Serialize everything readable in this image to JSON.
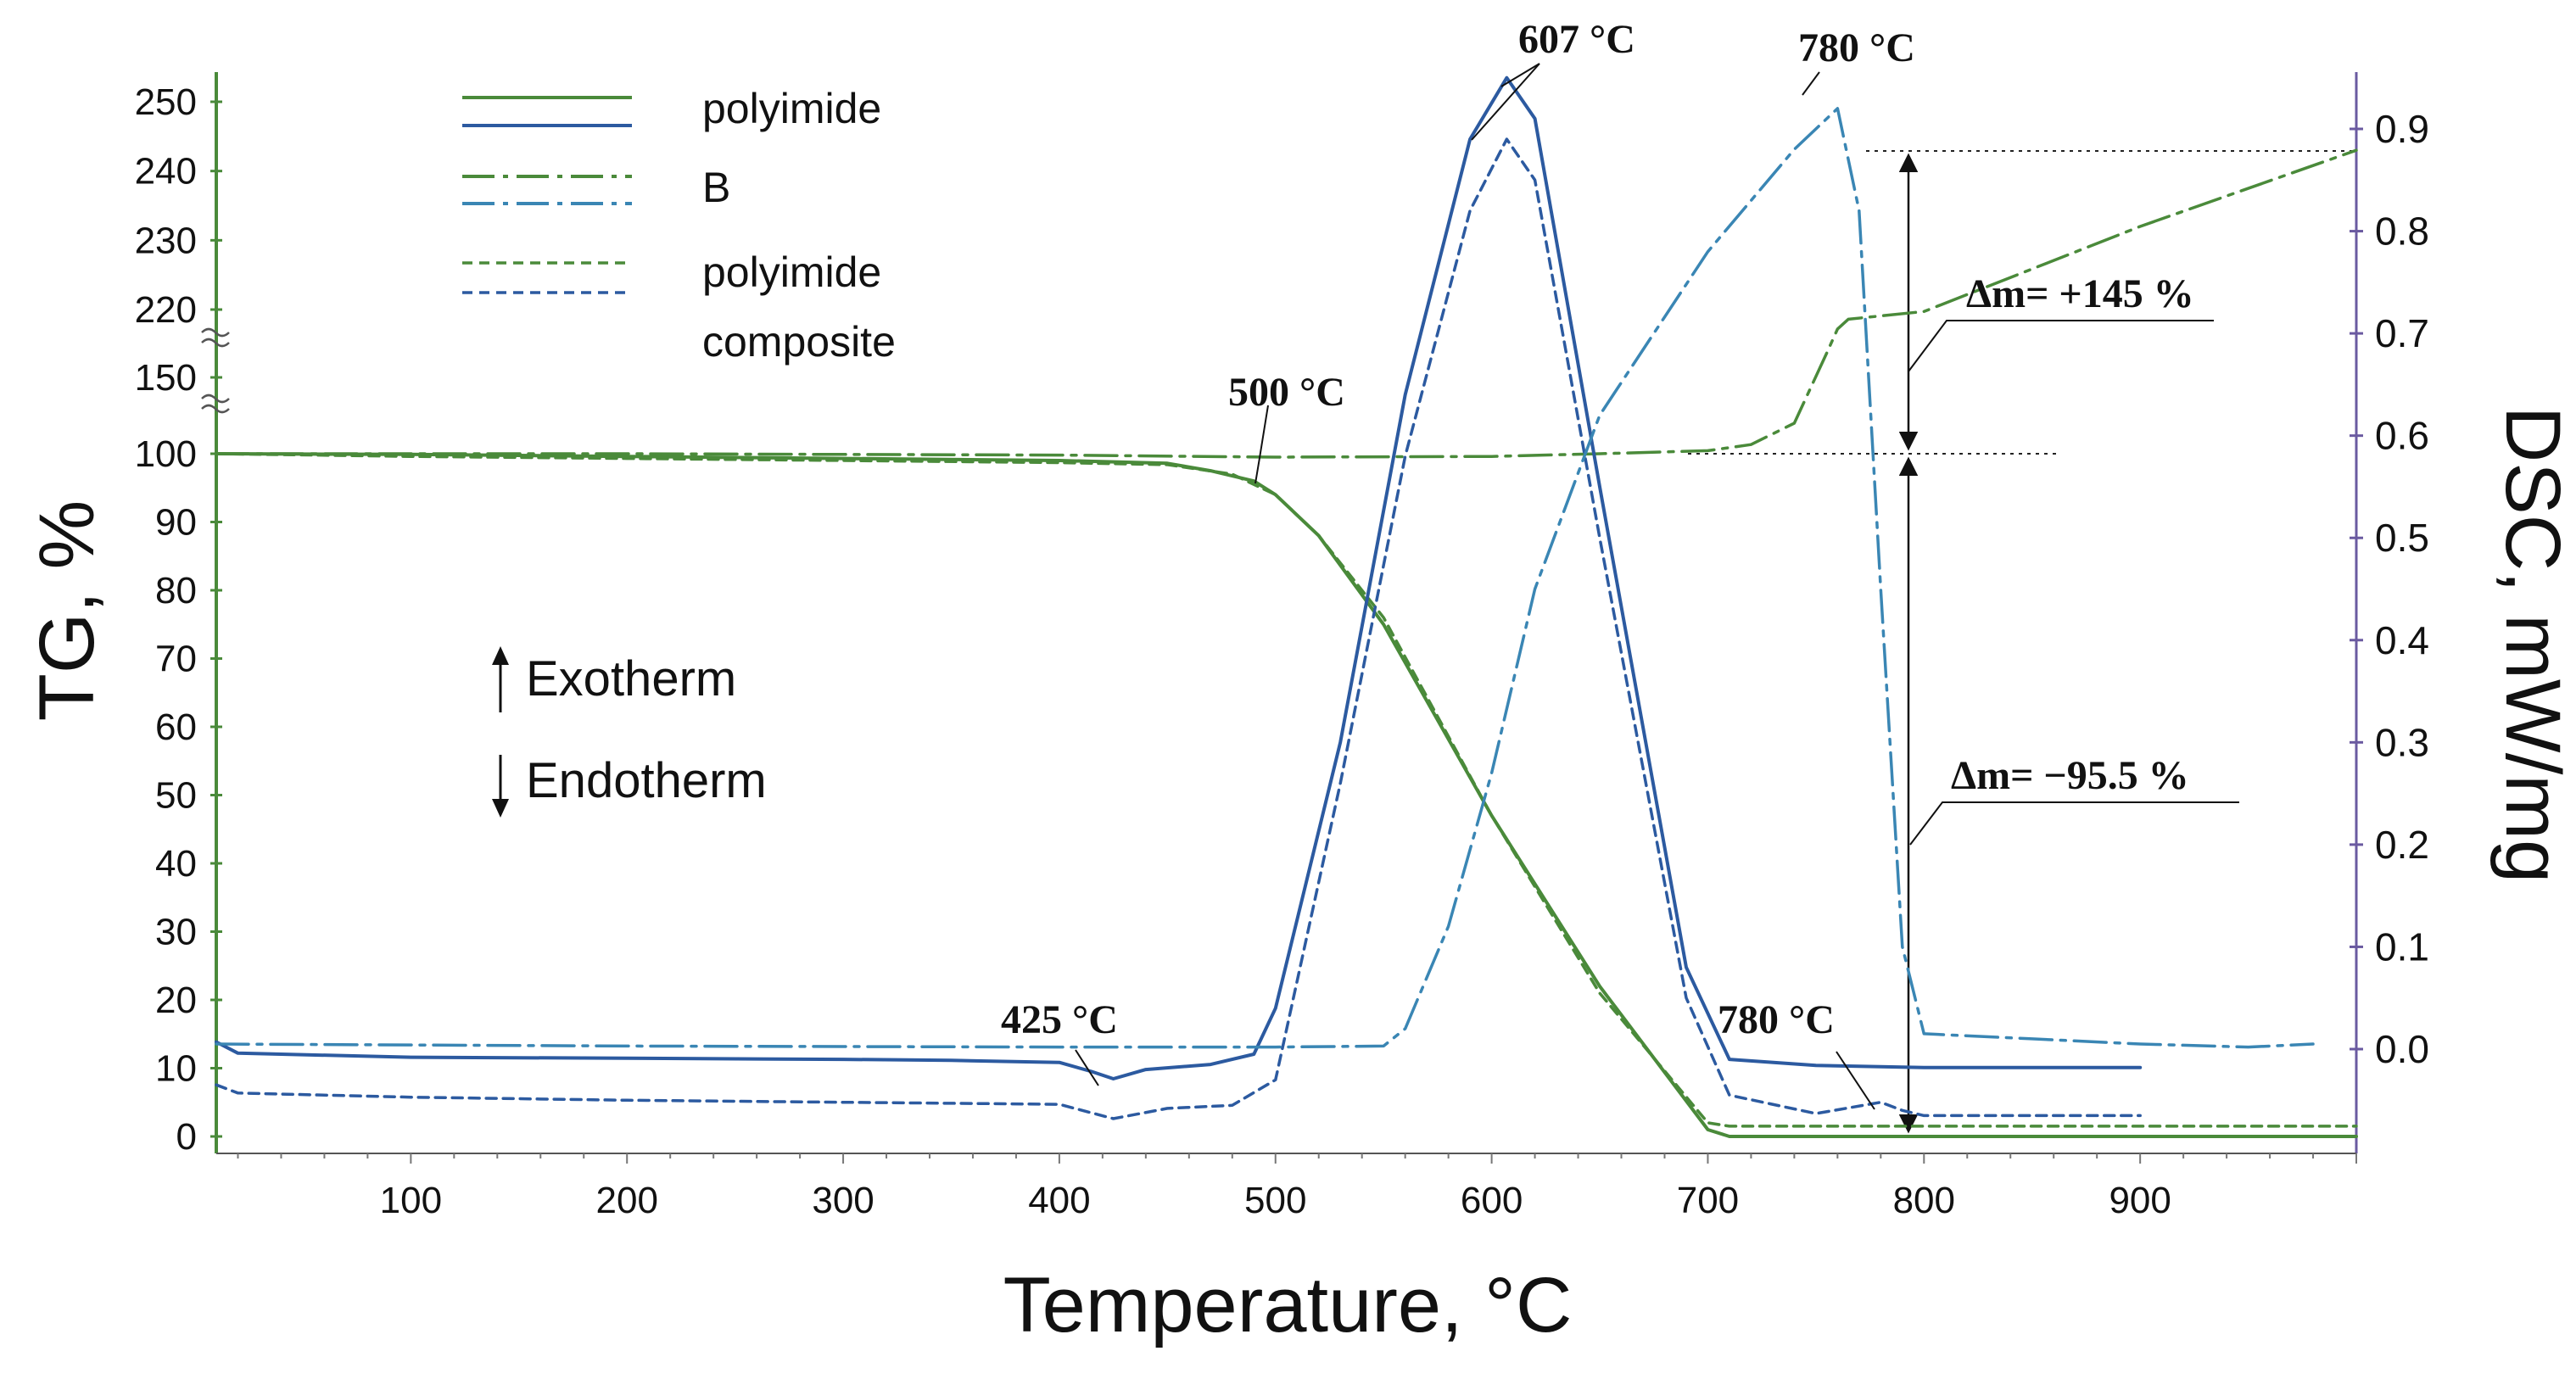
{
  "chart_data": {
    "type": "line",
    "xlabel": "Temperature,  °C",
    "ylabel_left": "TG, %",
    "ylabel_right": "DSC, mW/mg",
    "xlim": [
      10,
      1000
    ],
    "x_ticks": [
      100,
      200,
      300,
      400,
      500,
      600,
      700,
      800,
      900
    ],
    "tg_ticks": [
      "0",
      "10",
      "20",
      "30",
      "40",
      "50",
      "60",
      "70",
      "80",
      "90",
      "100",
      "150",
      "220",
      "230",
      "240",
      "250"
    ],
    "dsc_ticks": [
      "0.0",
      "0.1",
      "0.2",
      "0.3",
      "0.4",
      "0.5",
      "0.6",
      "0.7",
      "0.8",
      "0.9"
    ],
    "legend": [
      {
        "label": "polyimide",
        "style": "solid"
      },
      {
        "label": "B",
        "style": "dashdot"
      },
      {
        "label": "polyimide",
        "label2": "composite",
        "style": "dashed"
      }
    ],
    "legend_position": "top-left",
    "colors": {
      "tg": "#4a8a3a",
      "dsc": "#2c5aa0",
      "dsc_b": "#3a86b4"
    },
    "series": [
      {
        "name": "polyimide",
        "kind": "TG",
        "style": "solid",
        "x": [
          10,
          100,
          200,
          300,
          400,
          450,
          470,
          490,
          500,
          520,
          550,
          600,
          650,
          700,
          710,
          800,
          900,
          1000
        ],
        "y": [
          100,
          99.9,
          99.6,
          99.3,
          99,
          98.6,
          97.5,
          96,
          94,
          88,
          75,
          47,
          22,
          1,
          0,
          0,
          0,
          0
        ]
      },
      {
        "name": "polyimide composite",
        "kind": "TG",
        "style": "dashed",
        "x": [
          10,
          100,
          200,
          300,
          400,
          450,
          480,
          500,
          520,
          550,
          600,
          650,
          700,
          710,
          800,
          900,
          1000
        ],
        "y": [
          100,
          99.6,
          99.3,
          99,
          98.7,
          98.4,
          97,
          94,
          88,
          76,
          47,
          21,
          2,
          1.5,
          1.5,
          1.5,
          1.5
        ]
      },
      {
        "name": "B",
        "kind": "TG",
        "style": "dashdot",
        "x": [
          10,
          200,
          400,
          500,
          600,
          650,
          700,
          720,
          740,
          755,
          760,
          765,
          800,
          900,
          1000
        ],
        "y": [
          100,
          100,
          99.8,
          99.5,
          99.6,
          100,
          102,
          106,
          120,
          175,
          200,
          210,
          218,
          232,
          243
        ]
      },
      {
        "name": "polyimide",
        "kind": "DSC",
        "style": "solid",
        "x": [
          10,
          20,
          100,
          200,
          300,
          350,
          400,
          415,
          425,
          440,
          470,
          490,
          500,
          530,
          560,
          590,
          607,
          620,
          650,
          690,
          710,
          750,
          800,
          900
        ],
        "y": [
          0.007,
          -0.004,
          -0.008,
          -0.009,
          -0.01,
          -0.011,
          -0.013,
          -0.022,
          -0.029,
          -0.02,
          -0.015,
          -0.005,
          0.04,
          0.3,
          0.64,
          0.89,
          0.95,
          0.91,
          0.55,
          0.08,
          -0.01,
          -0.016,
          -0.018,
          -0.018
        ]
      },
      {
        "name": "polyimide composite",
        "kind": "DSC",
        "style": "dashed",
        "x": [
          10,
          20,
          100,
          200,
          300,
          400,
          425,
          450,
          480,
          500,
          530,
          560,
          590,
          607,
          620,
          650,
          690,
          710,
          750,
          780,
          790,
          800,
          900
        ],
        "y": [
          -0.035,
          -0.043,
          -0.047,
          -0.05,
          -0.052,
          -0.054,
          -0.068,
          -0.058,
          -0.055,
          -0.03,
          0.26,
          0.58,
          0.82,
          0.89,
          0.85,
          0.5,
          0.05,
          -0.045,
          -0.063,
          -0.052,
          -0.06,
          -0.065,
          -0.065
        ]
      },
      {
        "name": "B",
        "kind": "DSC",
        "style": "dashdot",
        "x": [
          10,
          200,
          400,
          500,
          550,
          560,
          580,
          600,
          620,
          650,
          700,
          740,
          760,
          770,
          780,
          790,
          800,
          850,
          900,
          950,
          980
        ],
        "y": [
          0.005,
          0.003,
          0.002,
          0.002,
          0.003,
          0.02,
          0.12,
          0.27,
          0.45,
          0.62,
          0.78,
          0.88,
          0.92,
          0.82,
          0.45,
          0.1,
          0.015,
          0.01,
          0.005,
          0.002,
          0.005
        ]
      }
    ],
    "annotations": [
      {
        "text": "607 °C"
      },
      {
        "text": "780 °C"
      },
      {
        "text": "500 °C"
      },
      {
        "text": "425 °C"
      },
      {
        "text": "780 °C"
      },
      {
        "text": "Δm= +145 %"
      },
      {
        "text": "Δm= −95.5 %"
      }
    ],
    "key": {
      "exo": "Exotherm",
      "endo": "Endotherm"
    }
  }
}
